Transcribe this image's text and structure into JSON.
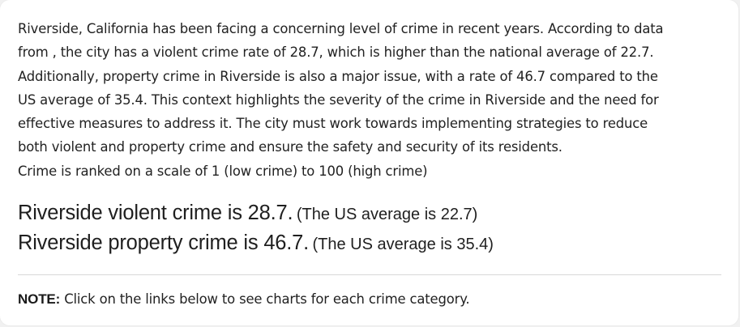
{
  "intro": {
    "lines": [
      "Riverside, California has been facing a concerning level of crime in recent years. According to data",
      "from , the city has a violent crime rate of 28.7, which is higher than the national average of 22.7.",
      "Additionally, property crime in Riverside is also a major issue, with a rate of 46.7 compared to the",
      "US average of 35.4. This context highlights the severity of the crime in Riverside and the need for",
      "effective measures to address it. The city must work towards implementing strategies to reduce",
      "both violent and property crime and ensure the safety and security of its residents.",
      "Crime is ranked on a scale of 1 (low crime) to 100 (high crime)"
    ]
  },
  "violent": {
    "main": "Riverside violent crime is 28.7.",
    "average": "(The US average is 22.7)"
  },
  "property": {
    "main": "Riverside property crime is 46.7.",
    "average": "(The US average is 35.4)"
  },
  "note": {
    "label": "NOTE:",
    "text": "Click on the links below to see charts for each crime category."
  }
}
